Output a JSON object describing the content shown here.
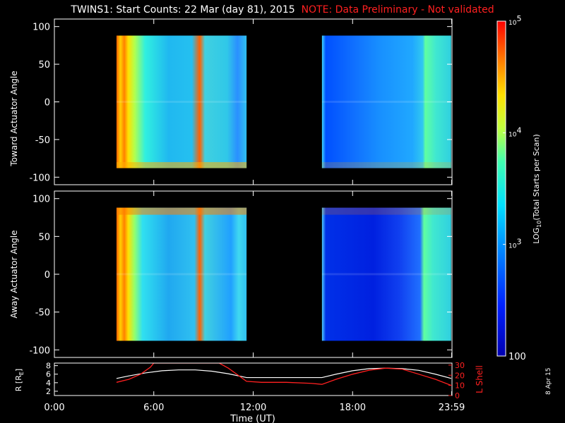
{
  "title": {
    "main": "TWINS1: Start Counts: 22 Mar (day  81), 2015",
    "note": "NOTE: Data Preliminary - Not validated"
  },
  "date_stamp": "8 Apr 15",
  "colors": {
    "background": "#000000",
    "note": "#ff2020",
    "axis": "#ffffff",
    "lshell": "#ff2020"
  },
  "chart_data": [
    {
      "type": "heatmap",
      "panel": "toward",
      "ylabel": "Toward Actuator Angle",
      "yticks": [
        "100",
        "50",
        "0",
        "-50",
        "-100"
      ],
      "ylim": [
        -110,
        110
      ],
      "xlim": [
        0,
        24
      ],
      "data_blocks": [
        {
          "name": "pass 1",
          "x_start": 3.75,
          "x_end": 11.6,
          "y_start": -88,
          "y_end": 88
        },
        {
          "name": "pass 2",
          "x_start": 16.15,
          "x_end": 23.95,
          "y_start": -88,
          "y_end": 88
        }
      ]
    },
    {
      "type": "heatmap",
      "panel": "away",
      "ylabel": "Away Actuator Angle",
      "yticks": [
        "100",
        "50",
        "0",
        "-50",
        "-100"
      ],
      "ylim": [
        -110,
        110
      ],
      "xlim": [
        0,
        24
      ],
      "data_blocks": [
        {
          "name": "pass 1",
          "x_start": 3.75,
          "x_end": 11.6,
          "y_start": -88,
          "y_end": 88
        },
        {
          "name": "pass 2",
          "x_start": 16.15,
          "x_end": 23.95,
          "y_start": -88,
          "y_end": 88
        }
      ]
    },
    {
      "type": "line",
      "panel": "orbit",
      "ylabel_left": "R [R",
      "ylabel_left_sub": "E",
      "ylabel_right": "L Shell",
      "xlabel": "Time (UT)",
      "xticks": [
        {
          "t": 0,
          "label": "0:00"
        },
        {
          "t": 6,
          "label": "6:00"
        },
        {
          "t": 12,
          "label": "12:00"
        },
        {
          "t": 18,
          "label": "18:00"
        },
        {
          "t": 23.98,
          "label": "23:59"
        }
      ],
      "left_yticks": [
        "8",
        "6",
        "4",
        "2"
      ],
      "left_ylim": [
        1,
        8.6
      ],
      "right_yticks": [
        "30",
        "20",
        "10",
        "0"
      ],
      "right_ylim": [
        0,
        32
      ],
      "series": [
        {
          "name": "R",
          "x": [
            3.75,
            4.5,
            5.5,
            6.5,
            7.5,
            8.5,
            9.5,
            10.5,
            11.6,
            12.5,
            13.5,
            14.5,
            15.5,
            16.15,
            17,
            18,
            19,
            20,
            21,
            22,
            23,
            23.95
          ],
          "values": [
            5.0,
            5.6,
            6.3,
            6.8,
            7.0,
            7.0,
            6.7,
            6.1,
            5.2,
            5.2,
            5.2,
            5.2,
            5.2,
            5.2,
            6.0,
            6.8,
            7.3,
            7.4,
            7.3,
            6.9,
            6.0,
            5.0
          ]
        },
        {
          "name": "L Shell",
          "x": [
            3.75,
            4.5,
            5.2,
            5.8,
            6.0,
            9.95,
            10.5,
            11.6,
            12.5,
            14,
            15.5,
            16.15,
            17,
            18,
            19,
            20,
            21,
            22,
            23,
            23.95
          ],
          "values": [
            13,
            16,
            21,
            28,
            32,
            32,
            27,
            14,
            13,
            13,
            12,
            11,
            16,
            21,
            25,
            27,
            26,
            21,
            16,
            10
          ]
        }
      ]
    }
  ],
  "colorbar": {
    "label_log": "LOG",
    "label_sub": "10",
    "label_rest": "(Total Starts per Scan)",
    "ticks": [
      {
        "value": 100,
        "base": "100",
        "exp": ""
      },
      {
        "value": 1000,
        "base": "10",
        "exp": "3"
      },
      {
        "value": 10000,
        "base": "10",
        "exp": "4"
      },
      {
        "value": 100000,
        "base": "10",
        "exp": "5"
      }
    ]
  }
}
